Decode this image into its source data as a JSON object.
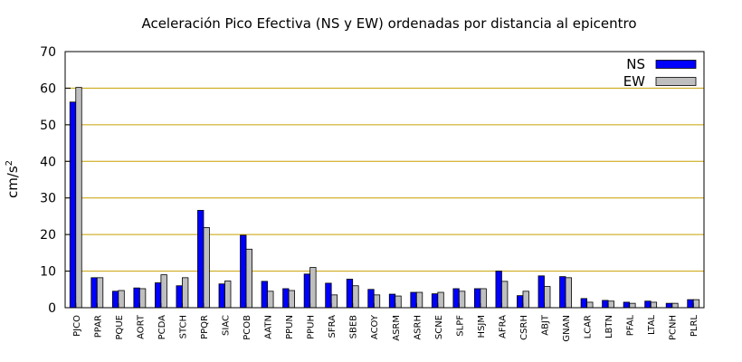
{
  "chart_data": {
    "type": "bar",
    "title": "Aceleración Pico Efectiva (NS y EW) ordenadas por distancia al epicentro",
    "ylabel": "cm/s",
    "ylabel_sup": "2",
    "xlabel": "",
    "ylim": [
      0,
      70
    ],
    "yticks": [
      0,
      10,
      20,
      30,
      40,
      50,
      60,
      70
    ],
    "grid": true,
    "legend_position": "top-right",
    "colors": {
      "NS": "#0000ff",
      "EW": "#bfbfbf",
      "grid": "#c8a000"
    },
    "categories": [
      "PJCO",
      "PPAR",
      "PQUE",
      "AORT",
      "PCDA",
      "STCH",
      "PPQR",
      "SIAC",
      "PCOB",
      "AATN",
      "PPUN",
      "PPUH",
      "SFRA",
      "SBEB",
      "ACOY",
      "ASRM",
      "ASRH",
      "SCNE",
      "SLPF",
      "HSJM",
      "AFRA",
      "CSRH",
      "ABJT",
      "GNAN",
      "LCAR",
      "LBTN",
      "PFAL",
      "LTAL",
      "PCNH",
      "PLRL"
    ],
    "series": [
      {
        "name": "NS",
        "values": [
          56.2,
          8.2,
          4.5,
          5.4,
          6.8,
          6.0,
          26.6,
          6.5,
          19.8,
          7.2,
          5.2,
          9.2,
          6.7,
          7.8,
          5.0,
          3.7,
          4.2,
          3.8,
          5.2,
          5.2,
          10.0,
          3.3,
          8.7,
          8.5,
          2.5,
          2.0,
          1.5,
          1.8,
          1.2,
          2.2
        ]
      },
      {
        "name": "EW",
        "values": [
          60.2,
          8.2,
          4.7,
          5.2,
          9.0,
          8.2,
          21.9,
          7.3,
          16.0,
          4.5,
          4.7,
          11.0,
          3.5,
          6.0,
          3.5,
          3.2,
          4.2,
          4.2,
          4.5,
          5.2,
          7.2,
          4.5,
          5.8,
          8.2,
          1.5,
          1.8,
          1.2,
          1.5,
          1.2,
          2.2
        ]
      }
    ]
  }
}
